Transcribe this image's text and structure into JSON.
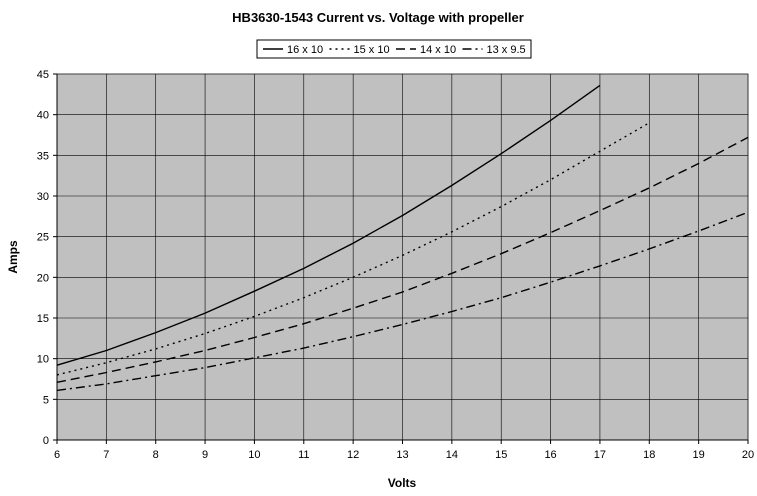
{
  "chart_data": {
    "type": "line",
    "title": "HB3630-1543 Current vs. Voltage with propeller",
    "xlabel": "Volts",
    "ylabel": "Amps",
    "xlim": [
      6,
      20
    ],
    "ylim": [
      0,
      45
    ],
    "xticks": [
      "6",
      "7",
      "8",
      "9",
      "10",
      "11",
      "12",
      "13",
      "14",
      "15",
      "16",
      "17",
      "18",
      "19",
      "20"
    ],
    "yticks": [
      "0",
      "5",
      "10",
      "15",
      "20",
      "25",
      "30",
      "35",
      "40",
      "45"
    ],
    "grid": true,
    "legend_position": "top-center",
    "plot_background": "#C0C0C0",
    "line_color": "#000000",
    "series": [
      {
        "name": "16 x 10",
        "dash": "solid",
        "x": [
          6,
          7,
          8,
          9,
          10,
          11,
          12,
          13,
          14,
          15,
          16,
          17
        ],
        "y": [
          9.2,
          11.0,
          13.2,
          15.6,
          18.3,
          21.1,
          24.2,
          27.6,
          31.3,
          35.2,
          39.3,
          43.6
        ]
      },
      {
        "name": "15 x 10",
        "dash": "dot",
        "x": [
          6,
          7,
          8,
          9,
          10,
          11,
          12,
          13,
          14,
          15,
          16,
          17,
          18
        ],
        "y": [
          8.0,
          9.5,
          11.2,
          13.1,
          15.2,
          17.5,
          20.0,
          22.7,
          25.6,
          28.7,
          32.0,
          35.5,
          39.0
        ]
      },
      {
        "name": "14 x 10",
        "dash": "dash",
        "x": [
          6,
          7,
          8,
          9,
          10,
          11,
          12,
          13,
          14,
          15,
          16,
          17,
          18,
          19,
          20
        ],
        "y": [
          7.1,
          8.3,
          9.6,
          11.0,
          12.6,
          14.3,
          16.2,
          18.2,
          20.5,
          22.9,
          25.5,
          28.2,
          31.0,
          34.0,
          37.2
        ]
      },
      {
        "name": "13 x 9.5",
        "dash": "dashdot",
        "x": [
          6,
          7,
          8,
          9,
          10,
          11,
          12,
          13,
          14,
          15,
          16,
          17,
          18,
          19,
          20
        ],
        "y": [
          6.1,
          6.9,
          7.9,
          8.9,
          10.1,
          11.3,
          12.7,
          14.2,
          15.8,
          17.5,
          19.4,
          21.4,
          23.5,
          25.7,
          28.0
        ]
      }
    ]
  }
}
